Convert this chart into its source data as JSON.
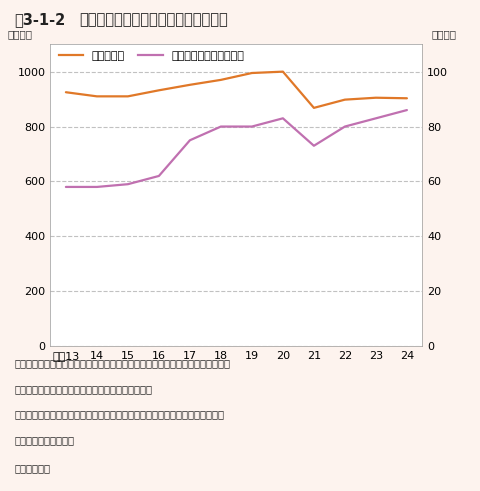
{
  "title_num": "図3-1-2",
  "title_text": "環境産業市場規模と国内生産額の比較",
  "ylabel_left": "（兆円）",
  "ylabel_right": "（兆円）",
  "xlabel_items": [
    "平成13",
    "14",
    "15",
    "16",
    "17",
    "18",
    "19",
    "20",
    "21",
    "22",
    "23",
    "24"
  ],
  "x_values": [
    13,
    14,
    15,
    16,
    17,
    18,
    19,
    20,
    21,
    22,
    23,
    24
  ],
  "line1_label": "国内生産額",
  "line1_color": "#e07828",
  "line1_values": [
    925,
    910,
    910,
    932,
    952,
    970,
    995,
    1000,
    868,
    898,
    905,
    903
  ],
  "line2_label": "環境産業市場（右目盛）",
  "line2_color": "#c070b0",
  "line2_values": [
    58,
    58,
    59,
    62,
    75,
    80,
    80,
    83,
    73,
    80,
    83,
    86
  ],
  "ylim_left": [
    0,
    1100
  ],
  "ylim_right": [
    0,
    110
  ],
  "yticks_left": [
    0,
    200,
    400,
    600,
    800,
    1000
  ],
  "yticks_right": [
    0,
    20,
    40,
    60,
    80,
    100
  ],
  "grid_color": "#bbbbbb",
  "background_color": "#fdf3ee",
  "plot_bg_color": "#ffffff",
  "note1": "注：ここでいう市場規模は「国内の環境産業にとっての内外市場規模（売上ベー",
  "note2": "ス）」とし、国内生産量をベースとして推測。",
  "note3": "環境産業内部の重複がありうることから、推計結果は、一定の幅を持って",
  "note4": "見る必要がある。",
  "source": "資料：環境省"
}
